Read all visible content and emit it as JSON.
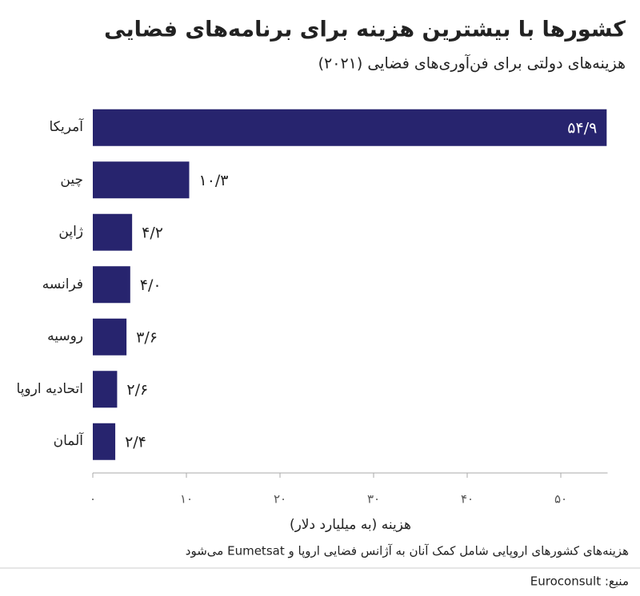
{
  "chart_data": {
    "type": "bar",
    "orientation": "horizontal",
    "title": "کشورها با بیشترین هزینه برای برنامه‌های فضایی",
    "subtitle": "هزینه‌های دولتی برای فن‌آوری‌های فضایی (۲۰۲۱)",
    "x_label": "هزینه (به میلیارد دلار)",
    "note": "هزینه‌های کشورهای اروپایی شامل کمک آنان به آژانس فضایی اروپا و Eumetsat می‌شود",
    "source": "منبع: Euroconsult",
    "categories": [
      "آمریکا",
      "چین",
      "ژاپن",
      "فرانسه",
      "روسیه",
      "اتحادیه اروپا",
      "آلمان"
    ],
    "values": [
      54.9,
      10.3,
      4.2,
      4.0,
      3.6,
      2.6,
      2.4
    ],
    "value_labels": [
      "۵۴/۹",
      "۱۰/۳",
      "۴/۲",
      "۴/۰",
      "۳/۶",
      "۲/۶",
      "۲/۴"
    ],
    "color": "#27246e",
    "xlim": [
      0,
      55
    ],
    "xticks": [
      {
        "value": 0,
        "label": "۰"
      },
      {
        "value": 10,
        "label": "۱۰"
      },
      {
        "value": 20,
        "label": "۲۰"
      },
      {
        "value": 30,
        "label": "۳۰"
      },
      {
        "value": 40,
        "label": "۴۰"
      },
      {
        "value": 50,
        "label": "۵۰"
      }
    ]
  }
}
